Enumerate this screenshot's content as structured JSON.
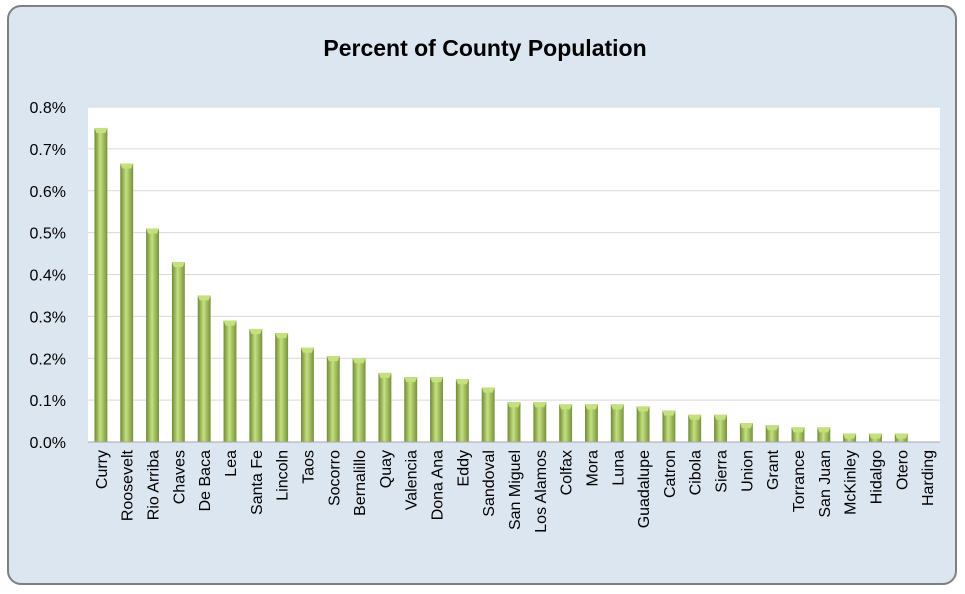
{
  "chart_data": {
    "type": "bar",
    "title": "Percent of County Population",
    "xlabel": "",
    "ylabel": "",
    "ylim": [
      0,
      0.8
    ],
    "yticks": [
      "0.0%",
      "0.1%",
      "0.2%",
      "0.3%",
      "0.4%",
      "0.5%",
      "0.6%",
      "0.7%",
      "0.8%"
    ],
    "grid": true,
    "legend": "none",
    "categories": [
      "Curry",
      "Roosevelt",
      "Rio Arriba",
      "Chaves",
      "De Baca",
      "Lea",
      "Santa Fe",
      "Lincoln",
      "Taos",
      "Socorro",
      "Bernalillo",
      "Quay",
      "Valencia",
      "Dona Ana",
      "Eddy",
      "Sandoval",
      "San Miguel",
      "Los Alamos",
      "Colfax",
      "Mora",
      "Luna",
      "Guadalupe",
      "Catron",
      "Cibola",
      "Sierra",
      "Union",
      "Grant",
      "Torrance",
      "San Juan",
      "McKinley",
      "Hidalgo",
      "Otero",
      "Harding"
    ],
    "values": [
      0.75,
      0.665,
      0.51,
      0.43,
      0.35,
      0.29,
      0.27,
      0.26,
      0.225,
      0.205,
      0.2,
      0.165,
      0.155,
      0.155,
      0.15,
      0.13,
      0.095,
      0.095,
      0.09,
      0.09,
      0.09,
      0.085,
      0.075,
      0.065,
      0.065,
      0.045,
      0.04,
      0.035,
      0.035,
      0.02,
      0.02,
      0.02,
      0.0
    ],
    "colors": {
      "bar_light": "#c5e07f",
      "bar_dark": "#76933c",
      "plot_bg": "#ffffff",
      "frame_bg": "#dce6f1"
    }
  }
}
